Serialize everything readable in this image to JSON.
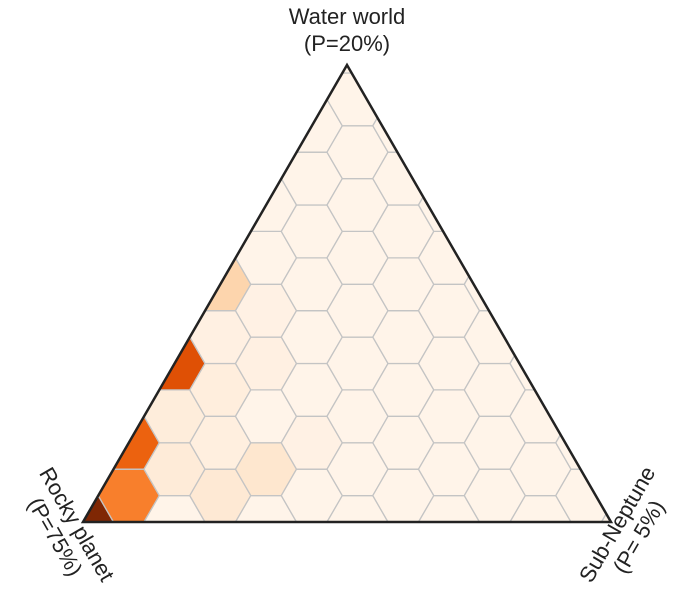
{
  "chart_data": {
    "type": "heatmap",
    "subtype": "ternary-hexbin",
    "title": "",
    "vertices": [
      {
        "position": "top",
        "line1": "Water world",
        "line2": "(P=20%)"
      },
      {
        "position": "bottom-left",
        "line1": "Rocky planet",
        "line2": "(P=75%)"
      },
      {
        "position": "bottom-right",
        "line1": "Sub-Neptune",
        "line2": "(P= 5%)"
      }
    ],
    "colormap": "Oranges",
    "colormap_stops": [
      "#fff5eb",
      "#fee6ce",
      "#fdd0a2",
      "#fdae6b",
      "#fd8d3c",
      "#f16913",
      "#d94801",
      "#a63603",
      "#7f2704"
    ],
    "gridsize": 10,
    "default_density": 0.01,
    "cells": [
      {
        "rocky": 0.99,
        "water": 0.01,
        "density": 1.0
      },
      {
        "rocky": 0.9,
        "water": 0.1,
        "density": 0.55
      },
      {
        "rocky": 0.8,
        "water": 0.2,
        "density": 0.65
      },
      {
        "rocky": 0.7,
        "water": 0.3,
        "density": 0.72
      },
      {
        "rocky": 0.6,
        "water": 0.4,
        "density": 0.45
      },
      {
        "rocky": 0.5,
        "water": 0.5,
        "density": 0.22
      },
      {
        "rocky": 0.9,
        "water": 0.0,
        "density": 0.03
      },
      {
        "rocky": 0.8,
        "water": 0.1,
        "density": 0.08
      },
      {
        "rocky": 0.7,
        "water": 0.1,
        "density": 0.1
      },
      {
        "rocky": 0.6,
        "water": 0.1,
        "density": 0.12
      },
      {
        "rocky": 0.7,
        "water": 0.2,
        "density": 0.07
      },
      {
        "rocky": 0.6,
        "water": 0.3,
        "density": 0.06
      },
      {
        "rocky": 0.5,
        "water": 0.3,
        "density": 0.04
      },
      {
        "rocky": 0.5,
        "water": 0.4,
        "density": 0.04
      },
      {
        "rocky": 0.4,
        "water": 0.5,
        "density": 0.03
      },
      {
        "rocky": 0.6,
        "water": 0.2,
        "density": 0.05
      },
      {
        "rocky": 0.5,
        "water": 0.2,
        "density": 0.03
      }
    ]
  }
}
